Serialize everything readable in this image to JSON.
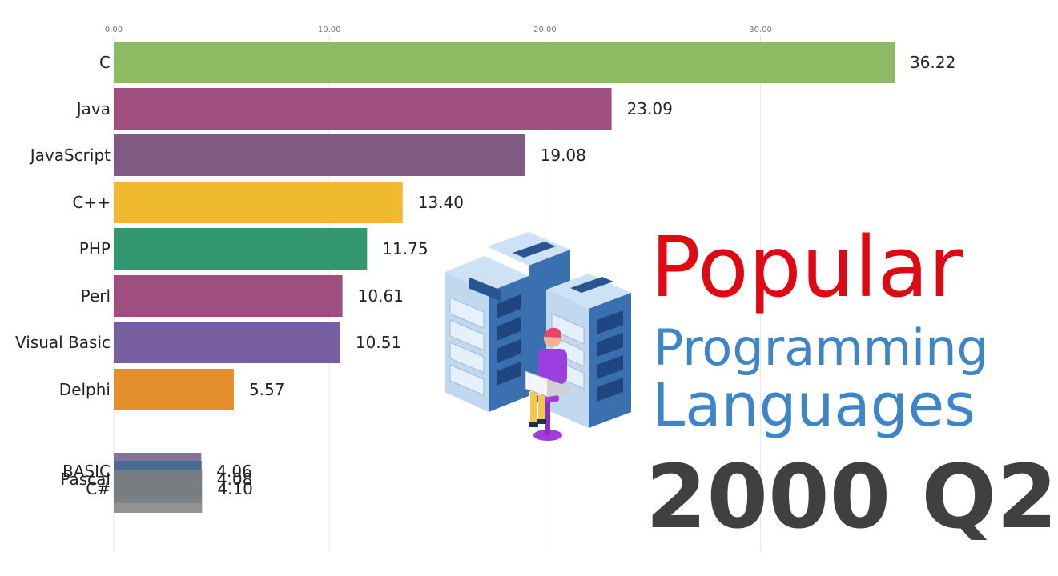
{
  "title": {
    "line1": "Popular",
    "line2": "Programming",
    "line3": "Languages"
  },
  "period": "2000 Q2",
  "colors": {
    "title_red": "#dd0a14",
    "title_blue": "#3d85c6",
    "period_gray": "#404040"
  },
  "illustration": "server-racks-with-person-using-laptop",
  "chart_data": {
    "type": "bar",
    "orientation": "horizontal",
    "xlim": [
      0,
      36.22
    ],
    "x_ticks": [
      "0.00",
      "10.00",
      "20.00",
      "30.00"
    ],
    "x_tick_values": [
      0,
      10,
      20,
      30
    ],
    "grid": true,
    "categories": [
      "C",
      "Java",
      "JavaScript",
      "C++",
      "PHP",
      "Perl",
      "Visual Basic",
      "Delphi",
      "BASIC",
      "Pascal",
      "C#"
    ],
    "values": [
      36.22,
      23.09,
      19.08,
      13.4,
      11.75,
      10.61,
      10.51,
      5.57,
      4.06,
      4.08,
      4.1
    ],
    "value_labels": [
      "36.22",
      "23.09",
      "19.08",
      "13.40",
      "11.75",
      "10.61",
      "10.51",
      "5.57",
      "4.06",
      "4.08",
      "4.10"
    ],
    "colors": [
      "#8cbb63",
      "#9e4f80",
      "#7f5b84",
      "#efba2f",
      "#329872",
      "#9e4f80",
      "#775fa0",
      "#e58f2c",
      "#6b5a88",
      "#3f6a8e",
      "#808080"
    ]
  }
}
